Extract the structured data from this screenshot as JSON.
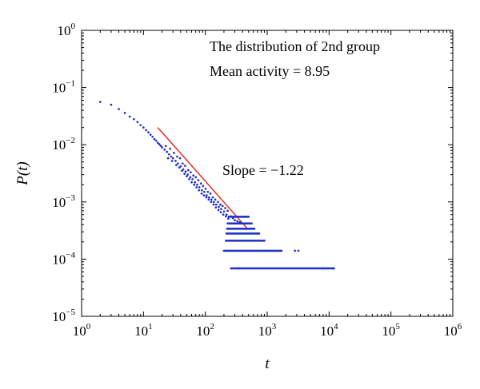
{
  "chart_data": {
    "type": "scatter",
    "title": "",
    "xlabel": "t",
    "ylabel": "P(t)",
    "xscale": "log",
    "yscale": "log",
    "xlim": [
      1,
      1000000
    ],
    "ylim": [
      1e-05,
      1
    ],
    "grid": false,
    "x_ticks": [
      {
        "base": "10",
        "exp": "0"
      },
      {
        "base": "10",
        "exp": "1"
      },
      {
        "base": "10",
        "exp": "2"
      },
      {
        "base": "10",
        "exp": "3"
      },
      {
        "base": "10",
        "exp": "4"
      },
      {
        "base": "10",
        "exp": "5"
      },
      {
        "base": "10",
        "exp": "6"
      }
    ],
    "y_ticks": [
      {
        "base": "10",
        "exp": "0"
      },
      {
        "base": "10",
        "exp": "−1"
      },
      {
        "base": "10",
        "exp": "−2"
      },
      {
        "base": "10",
        "exp": "−3"
      },
      {
        "base": "10",
        "exp": "−4"
      },
      {
        "base": "10",
        "exp": "−5"
      }
    ],
    "annotations": {
      "line1": "The distribution of 2nd group",
      "line2": "Mean activity = 8.95",
      "slope": "Slope = −1.22"
    },
    "fit_line": {
      "color": "#e8221c",
      "slope": -1.22,
      "x_start": 17,
      "x_end": 470,
      "y_start": 0.02
    },
    "point_color": "#1f2fc8",
    "series": [
      {
        "values": [
          [
            2,
            0.056
          ],
          [
            3,
            0.05
          ],
          [
            4,
            0.042
          ],
          [
            5,
            0.036
          ],
          [
            6,
            0.031
          ],
          [
            7,
            0.028
          ],
          [
            8,
            0.025
          ],
          [
            9,
            0.022
          ],
          [
            10,
            0.02
          ],
          [
            11,
            0.018
          ],
          [
            12,
            0.0165
          ],
          [
            13,
            0.015
          ],
          [
            14,
            0.0138
          ],
          [
            15,
            0.0125
          ],
          [
            16,
            0.0118
          ],
          [
            17,
            0.0108
          ],
          [
            18,
            0.0102
          ],
          [
            19,
            0.0096
          ],
          [
            20,
            0.009
          ],
          [
            22,
            0.0082
          ],
          [
            24,
            0.0075
          ],
          [
            26,
            0.0068
          ],
          [
            28,
            0.0062
          ],
          [
            30,
            0.0058
          ],
          [
            33,
            0.0052
          ],
          [
            36,
            0.0047
          ],
          [
            40,
            0.0042
          ],
          [
            44,
            0.0037
          ],
          [
            48,
            0.0034
          ],
          [
            52,
            0.003
          ],
          [
            57,
            0.0027
          ],
          [
            62,
            0.0025
          ],
          [
            68,
            0.0022
          ],
          [
            74,
            0.002
          ],
          [
            80,
            0.0018
          ],
          [
            88,
            0.0016
          ],
          [
            96,
            0.0015
          ],
          [
            105,
            0.0013
          ],
          [
            115,
            0.0012
          ],
          [
            125,
            0.0011
          ],
          [
            137,
            0.001
          ],
          [
            150,
            0.0009
          ],
          [
            165,
            0.00082
          ],
          [
            180,
            0.00075
          ],
          [
            200,
            0.00068
          ],
          [
            220,
            0.0006
          ],
          [
            240,
            0.00055
          ],
          [
            23,
            0.0095
          ],
          [
            27,
            0.0085
          ],
          [
            31,
            0.0072
          ],
          [
            35,
            0.0062
          ],
          [
            39,
            0.0058
          ],
          [
            43,
            0.0047
          ],
          [
            47,
            0.0043
          ],
          [
            53,
            0.0036
          ],
          [
            58,
            0.0033
          ],
          [
            64,
            0.0029
          ],
          [
            70,
            0.0027
          ],
          [
            77,
            0.0024
          ],
          [
            85,
            0.0021
          ],
          [
            92,
            0.0019
          ],
          [
            101,
            0.0017
          ],
          [
            110,
            0.0015
          ],
          [
            121,
            0.0014
          ],
          [
            132,
            0.0012
          ],
          [
            145,
            0.0011
          ],
          [
            160,
            0.001
          ],
          [
            175,
            0.0009
          ],
          [
            190,
            0.00085
          ],
          [
            210,
            0.00078
          ],
          [
            230,
            0.0007
          ],
          [
            25,
            0.0058
          ],
          [
            29,
            0.0052
          ],
          [
            34,
            0.0044
          ],
          [
            38,
            0.004
          ],
          [
            42,
            0.0035
          ],
          [
            46,
            0.0031
          ],
          [
            50,
            0.0028
          ],
          [
            55,
            0.0025
          ],
          [
            60,
            0.0022
          ],
          [
            66,
            0.002
          ],
          [
            72,
            0.0018
          ],
          [
            79,
            0.0016
          ],
          [
            87,
            0.0014
          ],
          [
            95,
            0.0013
          ],
          [
            104,
            0.0012
          ],
          [
            113,
            0.0011
          ],
          [
            124,
            0.001
          ],
          [
            136,
            0.0009
          ],
          [
            148,
            0.0008
          ],
          [
            163,
            0.00072
          ],
          [
            178,
            0.00066
          ],
          [
            195,
            0.0006
          ],
          [
            215,
            0.00056
          ],
          [
            235,
            0.00051
          ],
          [
            260,
            0.00056
          ],
          [
            280,
            0.00052
          ],
          [
            300,
            0.00048
          ],
          [
            330,
            0.00046
          ],
          [
            360,
            0.00044
          ]
        ]
      }
    ],
    "levels": [
      {
        "y": 0.00055,
        "x_from": 240,
        "x_to": 500
      },
      {
        "y": 0.00042,
        "x_from": 230,
        "x_to": 560
      },
      {
        "y": 0.00034,
        "x_from": 225,
        "x_to": 620
      },
      {
        "y": 0.00028,
        "x_from": 220,
        "x_to": 740
      },
      {
        "y": 0.00021,
        "x_from": 215,
        "x_to": 900
      },
      {
        "y": 0.00014,
        "x_from": 200,
        "x_to": 1700
      },
      {
        "y": 6.9e-05,
        "x_from": 260,
        "x_to": 12000
      }
    ],
    "outliers": [
      [
        2800,
        0.00014
      ],
      [
        3200,
        0.00014
      ],
      [
        8000,
        6.9e-05
      ],
      [
        11500,
        6.9e-05
      ],
      [
        350,
        6.9e-05
      ]
    ]
  }
}
